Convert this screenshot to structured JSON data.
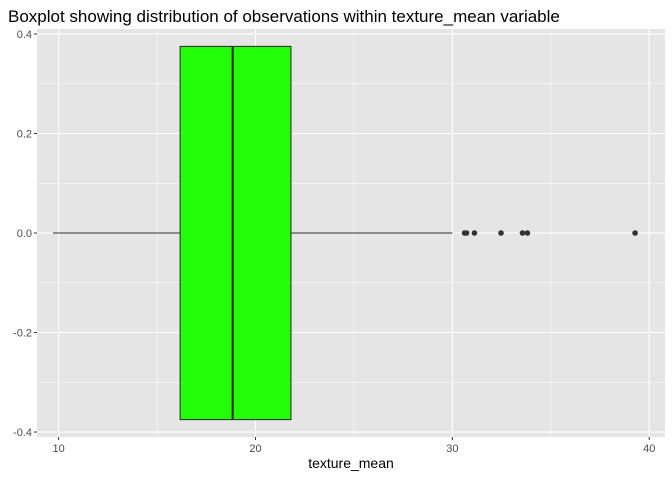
{
  "chart_data": {
    "type": "boxplot",
    "title": "Boxplot showing distribution of observations within texture_mean variable",
    "xlabel": "texture_mean",
    "ylabel": "",
    "xlim": [
      8.9,
      40.8
    ],
    "ylim": [
      -0.41,
      0.41
    ],
    "x_ticks": [
      10,
      20,
      30,
      40
    ],
    "y_ticks": [
      -0.4,
      -0.2,
      0.0,
      0.2,
      0.4
    ],
    "y_tick_labels": [
      "-0.4",
      "-0.2",
      "0.0",
      "0.2",
      "0.4"
    ],
    "box": {
      "whisker_low": 9.71,
      "q1": 16.17,
      "median": 18.84,
      "q3": 21.8,
      "whisker_high": 30.0,
      "y_min": -0.375,
      "y_max": 0.375,
      "y_center": 0.0
    },
    "outliers": [
      30.62,
      30.72,
      31.12,
      32.47,
      33.56,
      33.81,
      39.28
    ],
    "grid": true,
    "colors": {
      "box_fill": "#22ff08",
      "box_stroke": "#333333",
      "panel_bg": "#e5e5e5",
      "grid": "#ffffff",
      "point": "#333333"
    }
  }
}
